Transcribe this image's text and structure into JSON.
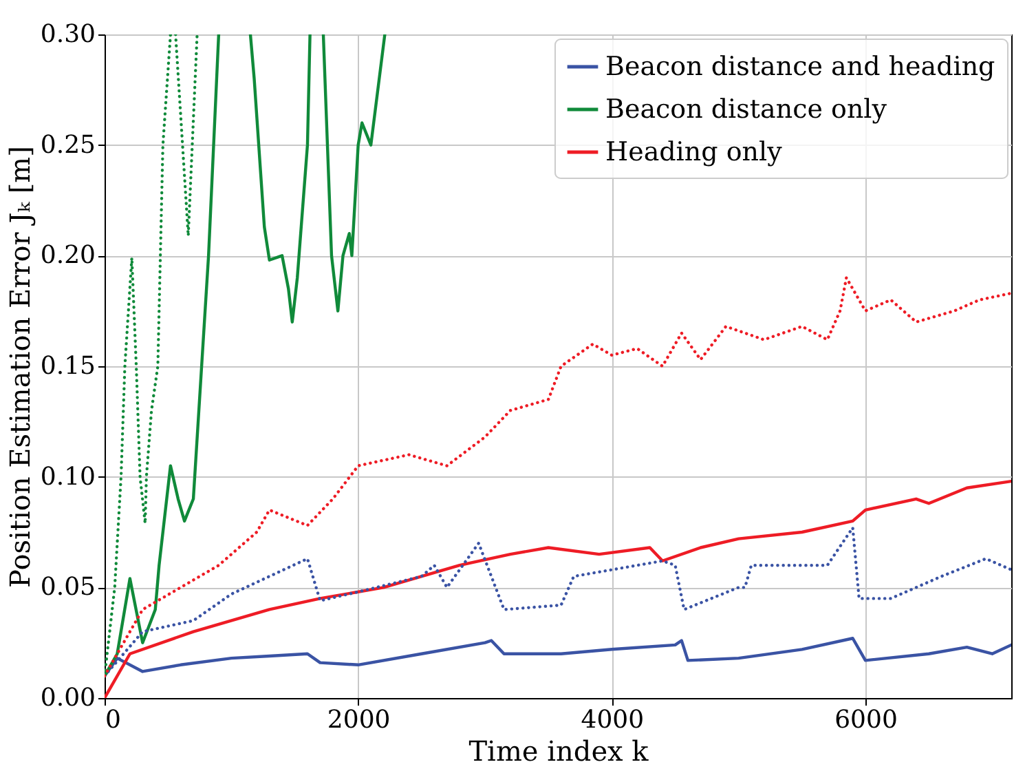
{
  "chart_data": {
    "type": "line",
    "xlabel": "Time index k",
    "ylabel": "Position Estimation Error Jₖ [m]",
    "xlim": [
      0,
      7150
    ],
    "ylim": [
      0,
      0.3
    ],
    "xticks": [
      0,
      2000,
      4000,
      6000
    ],
    "yticks": [
      {
        "value": 0,
        "label": "0.00"
      },
      {
        "value": 0.05,
        "label": "0.05"
      },
      {
        "value": 0.1,
        "label": "0.10"
      },
      {
        "value": 0.15,
        "label": "0.15"
      },
      {
        "value": 0.2,
        "label": "0.20"
      },
      {
        "value": 0.25,
        "label": "0.25"
      },
      {
        "value": 0.3,
        "label": "0.30"
      }
    ],
    "grid": true,
    "legend": "top right",
    "series": [
      {
        "name": "Beacon distance and heading",
        "color": "#3a53a4",
        "line_style": "solid",
        "x": [
          0,
          100,
          300,
          600,
          1000,
          1300,
          1600,
          1700,
          2000,
          2500,
          3000,
          3050,
          3150,
          3600,
          4000,
          4500,
          4550,
          4600,
          5000,
          5500,
          5900,
          6000,
          6500,
          6800,
          7000,
          7150
        ],
        "values": [
          0.01,
          0.018,
          0.012,
          0.015,
          0.018,
          0.019,
          0.02,
          0.016,
          0.015,
          0.02,
          0.025,
          0.026,
          0.02,
          0.02,
          0.022,
          0.024,
          0.026,
          0.017,
          0.018,
          0.022,
          0.027,
          0.017,
          0.02,
          0.023,
          0.02,
          0.024
        ]
      },
      {
        "name": "Beacon distance only",
        "color": "#108a3a",
        "line_style": "solid",
        "x": [
          0,
          100,
          200,
          300,
          400,
          430,
          520,
          580,
          630,
          700,
          820,
          900,
          1000,
          1150,
          1180,
          1260,
          1300,
          1400,
          1450,
          1480,
          1520,
          1600,
          1620,
          1680,
          1725,
          1790,
          1840,
          1880,
          1930,
          1950,
          2000,
          2030,
          2100,
          2210
        ],
        "values": [
          0.01,
          0.02,
          0.054,
          0.025,
          0.04,
          0.06,
          0.105,
          0.09,
          0.08,
          0.09,
          0.2,
          0.3,
          null,
          0.3,
          0.28,
          0.213,
          0.198,
          0.2,
          0.185,
          0.17,
          0.19,
          0.25,
          0.3,
          null,
          0.3,
          0.2,
          0.175,
          0.2,
          0.21,
          0.2,
          0.25,
          0.26,
          0.25,
          0.3
        ]
      },
      {
        "name": "Heading only",
        "color": "#ee1c25",
        "line_style": "solid",
        "x": [
          0,
          200,
          700,
          1300,
          1700,
          2200,
          2800,
          3200,
          3500,
          3900,
          4300,
          4400,
          4700,
          5000,
          5500,
          5900,
          6000,
          6400,
          6500,
          6800,
          7150
        ],
        "values": [
          0,
          0.02,
          0.03,
          0.04,
          0.045,
          0.05,
          0.06,
          0.065,
          0.068,
          0.065,
          0.068,
          0.062,
          0.068,
          0.072,
          0.075,
          0.08,
          0.085,
          0.09,
          0.088,
          0.095,
          0.098
        ]
      },
      {
        "color": "#3a53a4",
        "line_style": "dotted",
        "x": [
          0,
          300,
          700,
          1000,
          1600,
          1700,
          2000,
          2500,
          2600,
          2700,
          2950,
          3150,
          3600,
          3700,
          4000,
          4400,
          4500,
          4570,
          5000,
          5050,
          5100,
          5700,
          5900,
          5950,
          6200,
          6600,
          6950,
          7150
        ],
        "values": [
          0.01,
          0.03,
          0.035,
          0.047,
          0.063,
          0.044,
          0.048,
          0.055,
          0.06,
          0.05,
          0.07,
          0.04,
          0.042,
          0.055,
          0.058,
          0.062,
          0.06,
          0.04,
          0.05,
          0.05,
          0.06,
          0.06,
          0.077,
          0.045,
          0.045,
          0.055,
          0.063,
          0.058
        ]
      },
      {
        "color": "#108a3a",
        "line_style": "dotted",
        "x": [
          0,
          80,
          130,
          160,
          215,
          250,
          280,
          320,
          330,
          370,
          420,
          440,
          460,
          520,
          540,
          560,
          660,
          730
        ],
        "values": [
          0.01,
          0.05,
          0.1,
          0.15,
          0.199,
          0.15,
          0.1,
          0.079,
          0.1,
          0.13,
          0.15,
          0.2,
          0.25,
          0.3,
          null,
          0.3,
          0.209,
          0.3
        ]
      },
      {
        "color": "#ee1c25",
        "line_style": "dotted",
        "x": [
          0,
          300,
          600,
          900,
          1200,
          1300,
          1600,
          1800,
          2000,
          2400,
          2700,
          3000,
          3200,
          3500,
          3600,
          3850,
          4000,
          4200,
          4400,
          4550,
          4700,
          4900,
          5200,
          5500,
          5700,
          5800,
          5850,
          6000,
          6200,
          6400,
          6700,
          6900,
          7150
        ],
        "values": [
          0.01,
          0.04,
          0.05,
          0.06,
          0.075,
          0.085,
          0.078,
          0.09,
          0.105,
          0.11,
          0.105,
          0.118,
          0.13,
          0.135,
          0.15,
          0.16,
          0.155,
          0.158,
          0.15,
          0.165,
          0.153,
          0.168,
          0.162,
          0.168,
          0.162,
          0.175,
          0.19,
          0.175,
          0.18,
          0.17,
          0.175,
          0.18,
          0.183
        ]
      }
    ]
  }
}
